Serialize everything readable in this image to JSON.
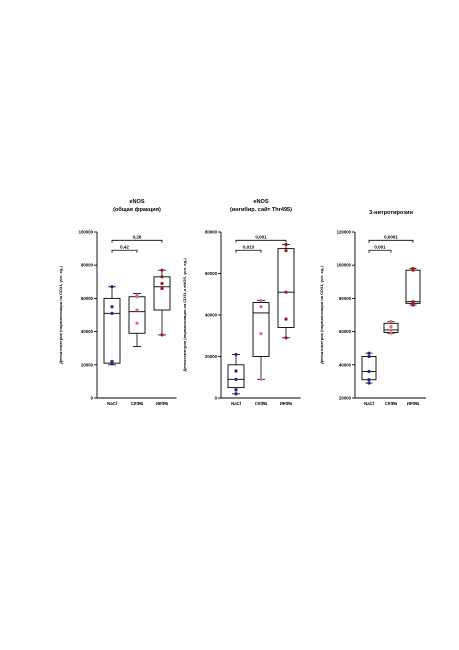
{
  "chart_data": [
    {
      "type": "box",
      "title": "eNOS",
      "subtitle": "(общая фракция)",
      "ylabel": "Денситометрия (нормализация на CD31, усл. ед.)",
      "ylim": [
        0,
        100000
      ],
      "yticks": [
        0,
        20000,
        40000,
        60000,
        80000,
        100000
      ],
      "categories": [
        "NaCl",
        "СКФБ",
        "ИКФБ"
      ],
      "colors": [
        "#1f2a8c",
        "#e07070",
        "#a0161b"
      ],
      "boxes": [
        {
          "min": 20000,
          "q1": 21000,
          "median": 51000,
          "q3": 60000,
          "max": 67000
        },
        {
          "min": 31000,
          "q1": 39000,
          "median": 52000,
          "q3": 61000,
          "max": 63000
        },
        {
          "min": 38000,
          "q1": 53000,
          "median": 67000,
          "q3": 73000,
          "max": 77000
        }
      ],
      "points": [
        [
          21000,
          22000,
          51000,
          55000,
          67000
        ],
        [
          45000,
          53000,
          61000,
          62000
        ],
        [
          38000,
          66000,
          69000,
          73000,
          77000
        ]
      ],
      "comparisons": [
        {
          "from": 0,
          "to": 1,
          "label": "0,42"
        },
        {
          "from": 0,
          "to": 2,
          "label": "0,26"
        }
      ]
    },
    {
      "type": "box",
      "title": "eNOS",
      "subtitle": "(ингибир. сайт Thr495)",
      "ylabel": "Денситометрия (нормализация на CD31 и eNOS, усл. ед.)",
      "ylim": [
        0,
        80000
      ],
      "yticks": [
        0,
        20000,
        40000,
        60000,
        80000
      ],
      "categories": [
        "NaCl",
        "СКФБ",
        "ИКФБ"
      ],
      "colors": [
        "#1f2a8c",
        "#e07070",
        "#a0161b"
      ],
      "boxes": [
        {
          "min": 2000,
          "q1": 5000,
          "median": 9000,
          "q3": 16000,
          "max": 21000
        },
        {
          "min": 9000,
          "q1": 20000,
          "median": 41000,
          "q3": 46000,
          "max": 47000
        },
        {
          "min": 29000,
          "q1": 34000,
          "median": 51000,
          "q3": 72000,
          "max": 74000
        }
      ],
      "points": [
        [
          2000,
          4000,
          9000,
          13000,
          21000
        ],
        [
          9000,
          31000,
          44000,
          47000
        ],
        [
          29000,
          38000,
          51000,
          71000,
          74000
        ]
      ],
      "comparisons": [
        {
          "from": 0,
          "to": 1,
          "label": "0,013"
        },
        {
          "from": 0,
          "to": 2,
          "label": "0,001"
        }
      ]
    },
    {
      "type": "box",
      "title": "3-нитротирозин",
      "subtitle": "",
      "ylabel": "Денситометрия (нормализация на CD31, усл. ед.)",
      "ylim": [
        20000,
        120000
      ],
      "yticks": [
        20000,
        40000,
        60000,
        80000,
        100000,
        120000
      ],
      "categories": [
        "NaCl",
        "СКФБ",
        "ИКФБ"
      ],
      "colors": [
        "#1f2a8c",
        "#e07070",
        "#a0161b"
      ],
      "boxes": [
        {
          "min": 29000,
          "q1": 31000,
          "median": 36000,
          "q3": 45000,
          "max": 47000
        },
        {
          "min": 59000,
          "q1": 59500,
          "median": 61000,
          "q3": 65000,
          "max": 66000
        },
        {
          "min": 76000,
          "q1": 77000,
          "median": 78000,
          "q3": 97000,
          "max": 98000
        }
      ],
      "points": [
        [
          29000,
          31000,
          36000,
          45000,
          47000
        ],
        [
          59000,
          61000,
          63000,
          66000
        ],
        [
          76000,
          77000,
          78000,
          97000,
          98000
        ]
      ],
      "comparisons": [
        {
          "from": 0,
          "to": 1,
          "label": "0,001"
        },
        {
          "from": 0,
          "to": 2,
          "label": "0,0001"
        }
      ]
    }
  ]
}
